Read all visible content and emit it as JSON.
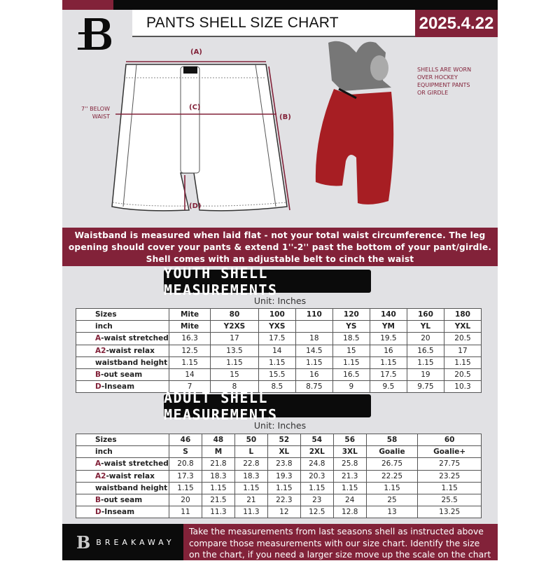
{
  "header": {
    "title": "PANTS SHELL SIZE CHART",
    "date": "2025.4.22",
    "logo_letter": "B"
  },
  "colors": {
    "brand": "#822239",
    "dark": "#0b0b0b",
    "background": "#e1e1e4"
  },
  "diagram": {
    "label_a": "(A)",
    "label_b": "(B)",
    "label_c": "(C)",
    "label_d": "(D)",
    "c_note_line1": "7'' BELOW",
    "c_note_line2": "WAIST",
    "photo_note": [
      "SHELLS ARE WORN",
      "OVER HOCKEY",
      "EQUIPMENT PANTS",
      "OR GIRDLE"
    ]
  },
  "banner": {
    "lines": [
      "Waistband is measured when laid flat - not your total waist circumference. The leg",
      "opening should cover your pants & extend 1''-2'' past the bottom of your pant/girdle.",
      "Shell comes with an adjustable belt to cinch the waist"
    ]
  },
  "youth": {
    "title": "YOUTH SHELL MEASUREMENTS",
    "unit": "Unit: Inches",
    "sizes": [
      "Sizes",
      "Mite",
      "80",
      "100",
      "110",
      "120",
      "140",
      "160",
      "180"
    ],
    "inch": [
      "inch",
      "Mite",
      "Y2XS",
      "YXS",
      "",
      "YS",
      "YM",
      "YL",
      "YXL"
    ],
    "rows": [
      {
        "letter": "A",
        "label": "-waist stretched",
        "values": [
          "16.3",
          "17",
          "17.5",
          "18",
          "18.5",
          "19.5",
          "20",
          "20.5"
        ]
      },
      {
        "letter": "A2",
        "label": "-waist relax",
        "values": [
          "12.5",
          "13.5",
          "14",
          "14.5",
          "15",
          "16",
          "16.5",
          "17"
        ]
      },
      {
        "letter": "",
        "label": "waistband height",
        "values": [
          "1.15",
          "1.15",
          "1.15",
          "1.15",
          "1.15",
          "1.15",
          "1.15",
          "1.15"
        ]
      },
      {
        "letter": "B",
        "label": "-out seam",
        "values": [
          "14",
          "15",
          "15.5",
          "16",
          "16.5",
          "17.5",
          "19",
          "20.5"
        ]
      },
      {
        "letter": "D",
        "label": "-Inseam",
        "values": [
          "7",
          "8",
          "8.5",
          "8.75",
          "9",
          "9.5",
          "9.75",
          "10.3"
        ]
      }
    ]
  },
  "adult": {
    "title": "ADULT SHELL MEASUREMENTS",
    "unit": "Unit: Inches",
    "sizes": [
      "Sizes",
      "46",
      "48",
      "50",
      "52",
      "54",
      "56",
      "58",
      "60"
    ],
    "inch": [
      "inch",
      "S",
      "M",
      "L",
      "XL",
      "2XL",
      "3XL",
      "Goalie",
      "Goalie+"
    ],
    "rows": [
      {
        "letter": "A",
        "label": "-waist stretched",
        "values": [
          "20.8",
          "21.8",
          "22.8",
          "23.8",
          "24.8",
          "25.8",
          "26.75",
          "27.75"
        ]
      },
      {
        "letter": "A2",
        "label": "-waist relax",
        "values": [
          "17.3",
          "18.3",
          "18.3",
          "19.3",
          "20.3",
          "21.3",
          "22.25",
          "23.25"
        ]
      },
      {
        "letter": "",
        "label": "waistband height",
        "values": [
          "1.15",
          "1.15",
          "1.15",
          "1.15",
          "1.15",
          "1.15",
          "1.15",
          "1.15"
        ]
      },
      {
        "letter": "B",
        "label": "-out seam",
        "values": [
          "20",
          "21.5",
          "21",
          "22.3",
          "23",
          "24",
          "25",
          "25.5"
        ]
      },
      {
        "letter": "D",
        "label": "-Inseam",
        "values": [
          "11",
          "11.3",
          "11.3",
          "12",
          "12.5",
          "12.8",
          "13",
          "13.25"
        ]
      }
    ]
  },
  "footer": {
    "brand": "BREAKAWAY",
    "lines": [
      "Take the measurements from last seasons shell as instructed above",
      "compare those measurements  with our size chart. Identify the size",
      "on the chart, if you need a larger size move up the scale on the chart"
    ]
  }
}
